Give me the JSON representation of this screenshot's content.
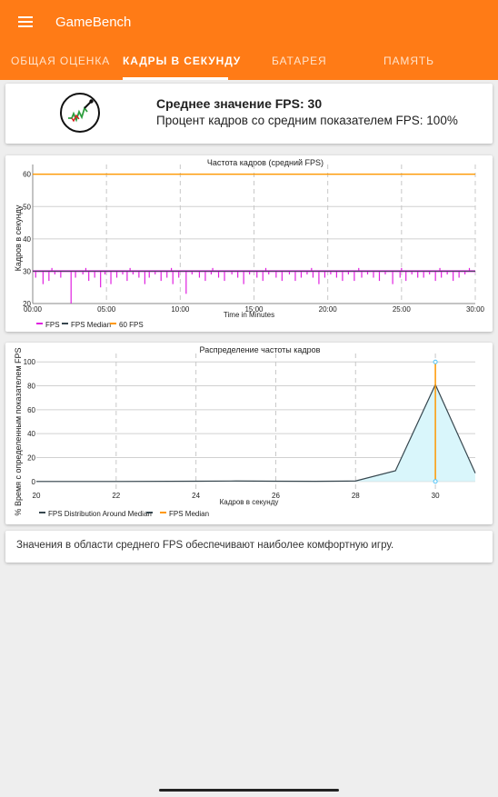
{
  "app": {
    "title": "GameBench",
    "menu_icon": "hamburger-menu-icon"
  },
  "tabs": [
    {
      "label": "ОБЩАЯ ОЦЕНКА",
      "active": false
    },
    {
      "label": "КАДРЫ В СЕКУНДУ",
      "active": true
    },
    {
      "label": "БАТАРЕЯ",
      "active": false
    },
    {
      "label": "ПАМЯТЬ",
      "active": false
    }
  ],
  "summary": {
    "icon": "gamebench-gauge-logo-icon",
    "title": "Среднее значение FPS: 30",
    "subtitle": "Процент кадров со средним показателем FPS: 100%"
  },
  "chart_data": [
    {
      "type": "line",
      "title": "Частота кадров (средний FPS)",
      "xlabel": "Time in Minutes",
      "ylabel": "Кадров в секунду",
      "xlim": [
        0,
        30
      ],
      "ylim": [
        20,
        60
      ],
      "x_ticks": [
        "00:00",
        "05:00",
        "10:00",
        "15:00",
        "20:00",
        "25:00",
        "30:00"
      ],
      "y_ticks": [
        20,
        30,
        40,
        50,
        60
      ],
      "grid": true,
      "legend_position": "bottom-left",
      "series": [
        {
          "name": "FPS",
          "color": "#e020e0",
          "baseline": 30,
          "dips": [
            [
              0.2,
              28
            ],
            [
              0.7,
              26
            ],
            [
              1.1,
              27
            ],
            [
              1.5,
              29
            ],
            [
              1.9,
              28
            ],
            [
              2.6,
              20
            ],
            [
              2.9,
              28
            ],
            [
              3.4,
              29
            ],
            [
              3.8,
              27
            ],
            [
              4.2,
              28
            ],
            [
              4.6,
              25
            ],
            [
              4.9,
              29
            ],
            [
              5.3,
              26
            ],
            [
              5.7,
              28
            ],
            [
              6.1,
              29
            ],
            [
              6.4,
              27
            ],
            [
              6.8,
              29
            ],
            [
              7.2,
              28
            ],
            [
              7.6,
              26
            ],
            [
              7.9,
              28
            ],
            [
              8.3,
              29
            ],
            [
              8.7,
              27
            ],
            [
              9.1,
              28
            ],
            [
              9.5,
              26
            ],
            [
              9.9,
              28
            ],
            [
              10.4,
              23
            ],
            [
              10.8,
              29
            ],
            [
              11.3,
              28
            ],
            [
              11.7,
              27
            ],
            [
              12.1,
              29
            ],
            [
              12.6,
              28
            ],
            [
              13.0,
              27
            ],
            [
              13.5,
              29
            ],
            [
              13.9,
              28
            ],
            [
              14.3,
              26
            ],
            [
              14.7,
              29
            ],
            [
              15.2,
              28
            ],
            [
              15.6,
              27
            ],
            [
              16.0,
              29
            ],
            [
              16.5,
              28
            ],
            [
              16.9,
              27
            ],
            [
              17.4,
              29
            ],
            [
              17.8,
              27
            ],
            [
              18.2,
              28
            ],
            [
              18.6,
              29
            ],
            [
              19.0,
              28
            ],
            [
              19.4,
              26
            ],
            [
              19.8,
              28
            ],
            [
              20.2,
              29
            ],
            [
              20.6,
              28
            ],
            [
              21.0,
              27
            ],
            [
              21.4,
              29
            ],
            [
              21.8,
              27
            ],
            [
              22.3,
              28
            ],
            [
              22.7,
              29
            ],
            [
              23.1,
              28
            ],
            [
              23.5,
              27
            ],
            [
              23.9,
              29
            ],
            [
              24.4,
              26
            ],
            [
              24.9,
              28
            ],
            [
              25.3,
              27
            ],
            [
              25.7,
              29
            ],
            [
              26.1,
              28
            ],
            [
              26.5,
              28
            ],
            [
              26.9,
              29
            ],
            [
              27.3,
              27
            ],
            [
              27.7,
              28
            ],
            [
              28.1,
              29
            ],
            [
              28.5,
              27
            ],
            [
              28.9,
              28
            ],
            [
              29.3,
              29
            ]
          ],
          "peaks": [
            [
              1.3,
              31
            ],
            [
              3.6,
              31
            ],
            [
              6.6,
              31
            ],
            [
              9.4,
              31
            ],
            [
              12.2,
              31
            ],
            [
              15.8,
              31
            ],
            [
              18.9,
              31
            ],
            [
              22.1,
              31
            ],
            [
              25.0,
              31
            ],
            [
              27.6,
              31
            ],
            [
              29.6,
              31
            ]
          ]
        },
        {
          "name": "FPS Median",
          "color": "#37474f",
          "constant": 30
        },
        {
          "name": "60 FPS",
          "color": "#ff9800",
          "constant": 60
        }
      ]
    },
    {
      "type": "area",
      "title": "Распределение частоты кадров",
      "xlabel": "Кадров в секунду",
      "ylabel": "% Время с определенным показателем FPS",
      "xlim": [
        20,
        31
      ],
      "ylim": [
        0,
        100
      ],
      "x_ticks": [
        20,
        22,
        24,
        26,
        28,
        30
      ],
      "y_ticks": [
        0,
        20,
        40,
        60,
        80,
        100
      ],
      "grid": true,
      "legend_position": "bottom-left",
      "series": [
        {
          "name": "FPS Distribution Around Median",
          "color": "#37474f",
          "fill": "#d9f6fb",
          "x": [
            20,
            22,
            24,
            25,
            26,
            27,
            28,
            29,
            30,
            31
          ],
          "values": [
            0,
            0,
            0.2,
            0.4,
            0.2,
            0.1,
            0.4,
            9,
            81,
            7
          ]
        },
        {
          "name": "FPS Median",
          "color": "#ff9800",
          "x": 30,
          "range": [
            0,
            100
          ]
        }
      ]
    }
  ],
  "info": {
    "text": "Значения в области среднего FPS обеспечивают наиболее комфортную игру."
  }
}
